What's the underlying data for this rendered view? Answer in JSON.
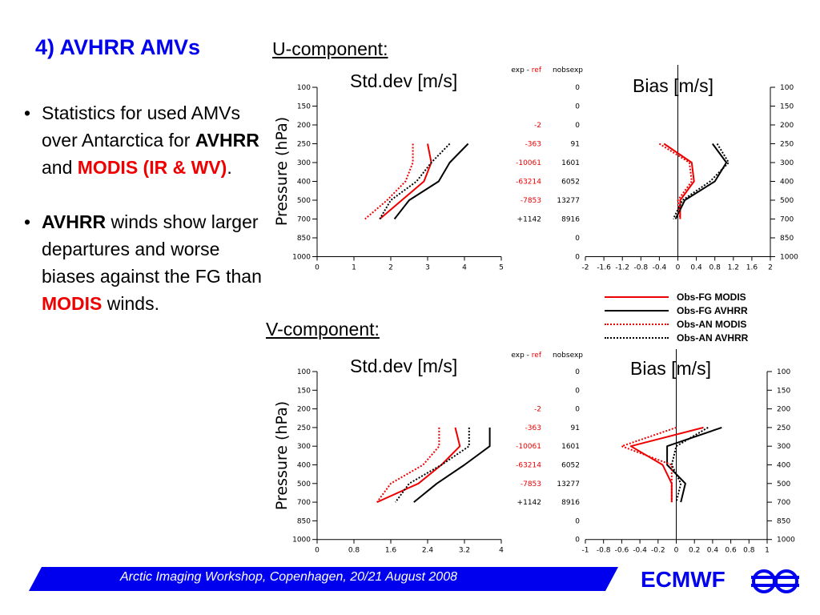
{
  "slide": {
    "title": "4) AVHRR AMVs",
    "bullet1": {
      "text1": "Statistics for used AMVs over Antarctica for ",
      "text2": "AVHRR",
      "text3": " and ",
      "text4": "MODIS (IR & WV)",
      "text5": "."
    },
    "bullet2": {
      "text1": "AVHRR",
      "text2": " winds show larger departures and worse biases against the FG than ",
      "text3": "MODIS",
      "text4": " winds."
    },
    "footer": "Arctic Imaging Workshop, Copenhagen, 20/21 August 2008",
    "logo": "ECMWF"
  },
  "colors": {
    "accent": "#0000ee",
    "red": "#ee0000",
    "black": "#000000"
  },
  "legend": [
    {
      "label": "Obs-FG MODIS",
      "color": "#ee0000",
      "style": "solid"
    },
    {
      "label": "Obs-FG AVHRR",
      "color": "#000000",
      "style": "solid"
    },
    {
      "label": "Obs-AN MODIS",
      "color": "#ee0000",
      "style": "dotted"
    },
    {
      "label": "Obs-AN AVHRR",
      "color": "#000000",
      "style": "dotted"
    }
  ],
  "chart_data": [
    {
      "id": "u-std",
      "section": "U-component:",
      "type": "line",
      "title": "Std.dev [m/s]",
      "ylabel": "Pressure (hPa)",
      "levels": [
        100,
        150,
        200,
        250,
        300,
        400,
        500,
        700,
        850,
        1000
      ],
      "xlim": [
        0,
        5
      ],
      "xticks": [
        "0",
        "1",
        "2",
        "3",
        "4",
        "5"
      ],
      "table_header": {
        "exp": "exp",
        "sep": " - ",
        "ref": "ref",
        "nobs": "nobsexp"
      },
      "diff": [
        "",
        "",
        "-2",
        "-363",
        "-10061",
        "-63214",
        "-7853",
        "+1142",
        "",
        ""
      ],
      "nobs": [
        "0",
        "0",
        "0",
        "91",
        "1601",
        "6052",
        "13277",
        "8916",
        "0",
        "0"
      ],
      "series": [
        {
          "legend": "Obs-FG MODIS",
          "points": [
            [
              3.0,
              250
            ],
            [
              3.1,
              300
            ],
            [
              2.9,
              400
            ],
            [
              2.3,
              500
            ],
            [
              1.7,
              700
            ]
          ]
        },
        {
          "legend": "Obs-FG AVHRR",
          "points": [
            [
              4.1,
              250
            ],
            [
              3.6,
              300
            ],
            [
              3.3,
              400
            ],
            [
              2.5,
              500
            ],
            [
              2.1,
              700
            ]
          ]
        },
        {
          "legend": "Obs-AN MODIS",
          "points": [
            [
              2.6,
              250
            ],
            [
              2.6,
              300
            ],
            [
              2.4,
              400
            ],
            [
              1.9,
              500
            ],
            [
              1.3,
              700
            ]
          ]
        },
        {
          "legend": "Obs-AN AVHRR",
          "points": [
            [
              3.6,
              250
            ],
            [
              3.1,
              300
            ],
            [
              2.7,
              400
            ],
            [
              2.0,
              500
            ],
            [
              1.7,
              700
            ]
          ]
        }
      ]
    },
    {
      "id": "u-bias",
      "type": "line",
      "title": "Bias [m/s]",
      "levels": [
        100,
        150,
        200,
        250,
        300,
        400,
        500,
        700,
        850,
        1000
      ],
      "xlim": [
        -2,
        2
      ],
      "xticks": [
        "-2",
        "-1.6",
        "-1.2",
        "-0.8",
        "-0.4",
        "0",
        "0.4",
        "0.8",
        "1.2",
        "1.6",
        "2"
      ],
      "series": [
        {
          "legend": "Obs-FG MODIS",
          "points": [
            [
              -0.3,
              250
            ],
            [
              0.3,
              300
            ],
            [
              0.35,
              400
            ],
            [
              0.05,
              500
            ],
            [
              0.05,
              700
            ]
          ]
        },
        {
          "legend": "Obs-FG AVHRR",
          "points": [
            [
              0.75,
              250
            ],
            [
              1.05,
              300
            ],
            [
              0.8,
              400
            ],
            [
              0.15,
              500
            ],
            [
              -0.05,
              700
            ]
          ]
        },
        {
          "legend": "Obs-AN MODIS",
          "points": [
            [
              -0.4,
              250
            ],
            [
              0.25,
              300
            ],
            [
              0.3,
              400
            ],
            [
              0.0,
              500
            ],
            [
              0.05,
              700
            ]
          ]
        },
        {
          "legend": "Obs-AN AVHRR",
          "points": [
            [
              0.85,
              250
            ],
            [
              1.1,
              300
            ],
            [
              0.7,
              400
            ],
            [
              0.1,
              500
            ],
            [
              -0.1,
              700
            ]
          ]
        }
      ]
    },
    {
      "id": "v-std",
      "section": "V-component:",
      "type": "line",
      "title": "Std.dev [m/s]",
      "ylabel": "Pressure (hPa)",
      "levels": [
        100,
        150,
        200,
        250,
        300,
        400,
        500,
        700,
        850,
        1000
      ],
      "xlim": [
        0,
        4
      ],
      "xticks": [
        "0",
        "0.8",
        "1.6",
        "2.4",
        "3.2",
        "4"
      ],
      "table_header": {
        "exp": "exp",
        "sep": " - ",
        "ref": "ref",
        "nobs": "nobsexp"
      },
      "diff": [
        "",
        "",
        "-2",
        "-363",
        "-10061",
        "-63214",
        "-7853",
        "+1142",
        "",
        ""
      ],
      "nobs": [
        "0",
        "0",
        "0",
        "91",
        "1601",
        "6052",
        "13277",
        "8916",
        "0",
        "0"
      ],
      "series": [
        {
          "legend": "Obs-FG MODIS",
          "points": [
            [
              3.0,
              250
            ],
            [
              3.1,
              300
            ],
            [
              2.7,
              400
            ],
            [
              2.2,
              500
            ],
            [
              1.3,
              700
            ]
          ]
        },
        {
          "legend": "Obs-FG AVHRR",
          "points": [
            [
              3.75,
              250
            ],
            [
              3.75,
              300
            ],
            [
              3.2,
              400
            ],
            [
              2.6,
              500
            ],
            [
              2.1,
              700
            ]
          ]
        },
        {
          "legend": "Obs-AN MODIS",
          "points": [
            [
              2.65,
              250
            ],
            [
              2.65,
              300
            ],
            [
              2.3,
              400
            ],
            [
              1.6,
              500
            ],
            [
              1.3,
              700
            ]
          ]
        },
        {
          "legend": "Obs-AN AVHRR",
          "points": [
            [
              3.3,
              250
            ],
            [
              3.3,
              300
            ],
            [
              2.7,
              400
            ],
            [
              2.0,
              500
            ],
            [
              1.7,
              700
            ]
          ]
        }
      ]
    },
    {
      "id": "v-bias",
      "type": "line",
      "title": "Bias [m/s]",
      "levels": [
        100,
        150,
        200,
        250,
        300,
        400,
        500,
        700,
        850,
        1000
      ],
      "xlim": [
        -1,
        1
      ],
      "xticks": [
        "-1",
        "-0.8",
        "-0.6",
        "-0.4",
        "-0.2",
        "0",
        "0.2",
        "0.4",
        "0.6",
        "0.8",
        "1"
      ],
      "series": [
        {
          "legend": "Obs-FG MODIS",
          "points": [
            [
              0.3,
              250
            ],
            [
              -0.5,
              300
            ],
            [
              -0.15,
              400
            ],
            [
              -0.05,
              500
            ],
            [
              -0.05,
              700
            ]
          ]
        },
        {
          "legend": "Obs-FG AVHRR",
          "points": [
            [
              0.5,
              250
            ],
            [
              -0.1,
              300
            ],
            [
              -0.1,
              400
            ],
            [
              0.1,
              500
            ],
            [
              0.05,
              700
            ]
          ]
        },
        {
          "legend": "Obs-AN MODIS",
          "points": [
            [
              0.0,
              250
            ],
            [
              -0.6,
              300
            ],
            [
              -0.05,
              400
            ],
            [
              -0.05,
              500
            ],
            [
              -0.05,
              700
            ]
          ]
        },
        {
          "legend": "Obs-AN AVHRR",
          "points": [
            [
              0.35,
              250
            ],
            [
              0.0,
              300
            ],
            [
              -0.05,
              400
            ],
            [
              0.05,
              500
            ],
            [
              0.0,
              700
            ]
          ]
        }
      ]
    }
  ]
}
